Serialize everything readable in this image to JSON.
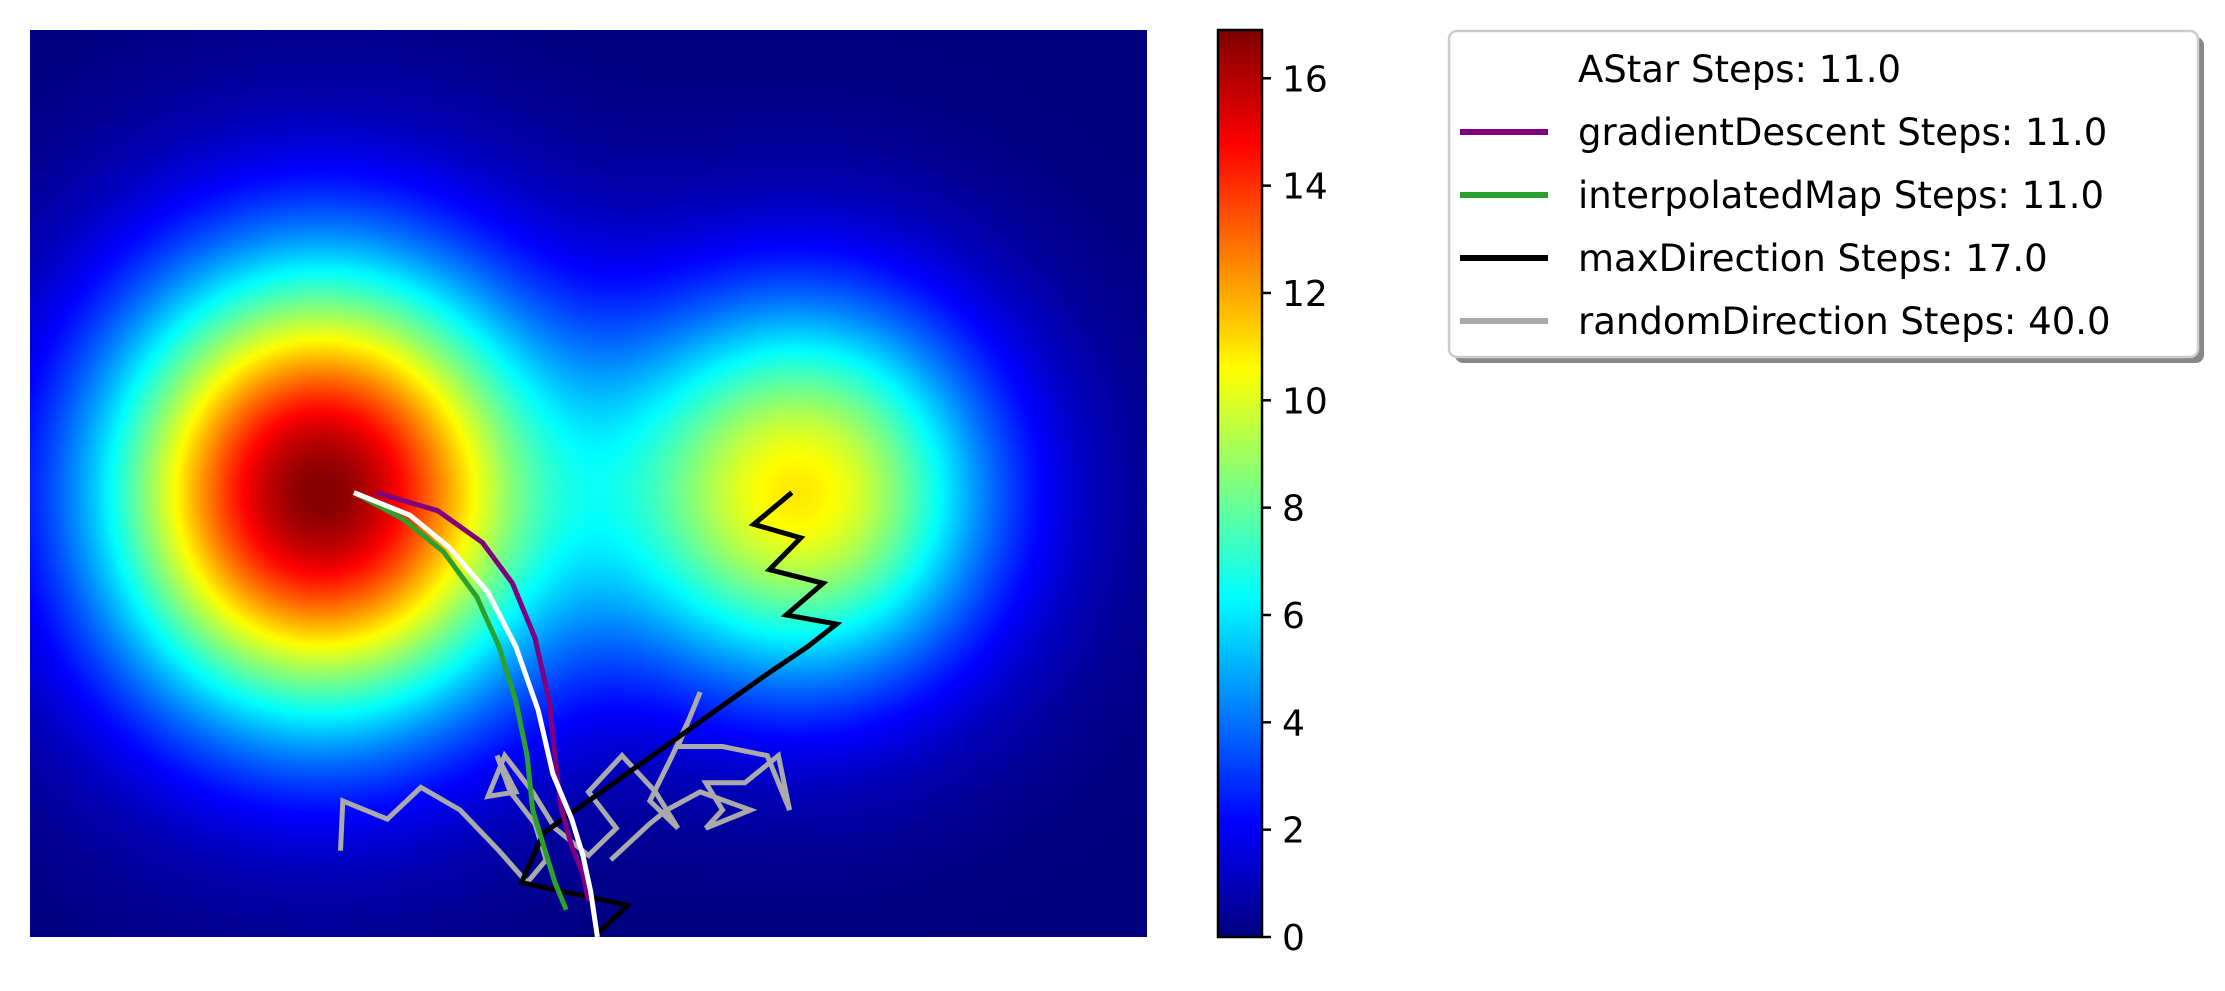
{
  "chart_data": {
    "type": "heatmap",
    "title": "",
    "xlabel": "",
    "ylabel": "",
    "axes_visible": false,
    "grid": false,
    "colormap": "jet",
    "field": {
      "description_values": "sum of two gaussian peaks on a 2D grid",
      "peaks": [
        {
          "cx": 0.26,
          "cy": 0.51,
          "amplitude": 16.8,
          "sx": 0.135,
          "sy": 0.175
        },
        {
          "cx": 0.69,
          "cy": 0.51,
          "amplitude": 10.8,
          "sx": 0.12,
          "sy": 0.15
        }
      ]
    },
    "colorbar": {
      "min": 0,
      "max": 16.9,
      "ticks": [
        0,
        2,
        4,
        6,
        8,
        10,
        12,
        14,
        16
      ]
    },
    "legend_position": "upper-right-outside",
    "series": [
      {
        "name": "AStar Steps: 11.0",
        "color": "#ffffff",
        "points": [
          [
            0.29,
            0.51
          ],
          [
            0.34,
            0.535
          ],
          [
            0.375,
            0.57
          ],
          [
            0.41,
            0.62
          ],
          [
            0.435,
            0.68
          ],
          [
            0.455,
            0.75
          ],
          [
            0.468,
            0.82
          ],
          [
            0.485,
            0.87
          ],
          [
            0.495,
            0.91
          ],
          [
            0.502,
            0.95
          ],
          [
            0.508,
            1.0
          ]
        ]
      },
      {
        "name": "gradientDescent Steps: 11.0",
        "color": "#800080",
        "points": [
          [
            0.31,
            0.51
          ],
          [
            0.365,
            0.53
          ],
          [
            0.405,
            0.565
          ],
          [
            0.432,
            0.61
          ],
          [
            0.452,
            0.67
          ],
          [
            0.465,
            0.74
          ],
          [
            0.47,
            0.8
          ],
          [
            0.475,
            0.855
          ],
          [
            0.485,
            0.9
          ],
          [
            0.495,
            0.93
          ],
          [
            0.5,
            0.96
          ]
        ]
      },
      {
        "name": "interpolatedMap Steps: 11.0",
        "color": "#2ca02c",
        "points": [
          [
            0.29,
            0.51
          ],
          [
            0.335,
            0.54
          ],
          [
            0.37,
            0.575
          ],
          [
            0.4,
            0.625
          ],
          [
            0.42,
            0.68
          ],
          [
            0.435,
            0.74
          ],
          [
            0.445,
            0.8
          ],
          [
            0.45,
            0.86
          ],
          [
            0.46,
            0.9
          ],
          [
            0.47,
            0.94
          ],
          [
            0.48,
            0.97
          ]
        ]
      },
      {
        "name": "maxDirection Steps: 17.0",
        "color": "#000000",
        "points": [
          [
            0.682,
            0.51
          ],
          [
            0.648,
            0.545
          ],
          [
            0.69,
            0.56
          ],
          [
            0.662,
            0.595
          ],
          [
            0.71,
            0.61
          ],
          [
            0.677,
            0.645
          ],
          [
            0.722,
            0.655
          ],
          [
            0.696,
            0.68
          ],
          [
            0.66,
            0.71
          ],
          [
            0.62,
            0.745
          ],
          [
            0.58,
            0.78
          ],
          [
            0.54,
            0.815
          ],
          [
            0.5,
            0.85
          ],
          [
            0.46,
            0.885
          ],
          [
            0.44,
            0.94
          ],
          [
            0.535,
            0.965
          ],
          [
            0.505,
            1.0
          ]
        ]
      },
      {
        "name": "randomDirection Steps: 40.0",
        "color": "#aaaaaa",
        "points": [
          [
            0.278,
            0.905
          ],
          [
            0.28,
            0.85
          ],
          [
            0.32,
            0.87
          ],
          [
            0.35,
            0.835
          ],
          [
            0.385,
            0.86
          ],
          [
            0.42,
            0.905
          ],
          [
            0.445,
            0.94
          ],
          [
            0.462,
            0.915
          ],
          [
            0.452,
            0.875
          ],
          [
            0.43,
            0.84
          ],
          [
            0.418,
            0.8
          ],
          [
            0.435,
            0.84
          ],
          [
            0.41,
            0.845
          ],
          [
            0.425,
            0.8
          ],
          [
            0.45,
            0.84
          ],
          [
            0.47,
            0.88
          ],
          [
            0.5,
            0.91
          ],
          [
            0.525,
            0.88
          ],
          [
            0.5,
            0.84
          ],
          [
            0.53,
            0.8
          ],
          [
            0.56,
            0.84
          ],
          [
            0.58,
            0.88
          ],
          [
            0.555,
            0.85
          ],
          [
            0.575,
            0.8
          ],
          [
            0.59,
            0.76
          ],
          [
            0.6,
            0.73
          ],
          [
            0.58,
            0.79
          ],
          [
            0.62,
            0.79
          ],
          [
            0.66,
            0.8
          ],
          [
            0.68,
            0.86
          ],
          [
            0.67,
            0.8
          ],
          [
            0.64,
            0.83
          ],
          [
            0.605,
            0.83
          ],
          [
            0.62,
            0.86
          ],
          [
            0.605,
            0.88
          ],
          [
            0.645,
            0.86
          ],
          [
            0.6,
            0.84
          ],
          [
            0.57,
            0.86
          ],
          [
            0.555,
            0.875
          ],
          [
            0.52,
            0.915
          ]
        ]
      }
    ]
  }
}
